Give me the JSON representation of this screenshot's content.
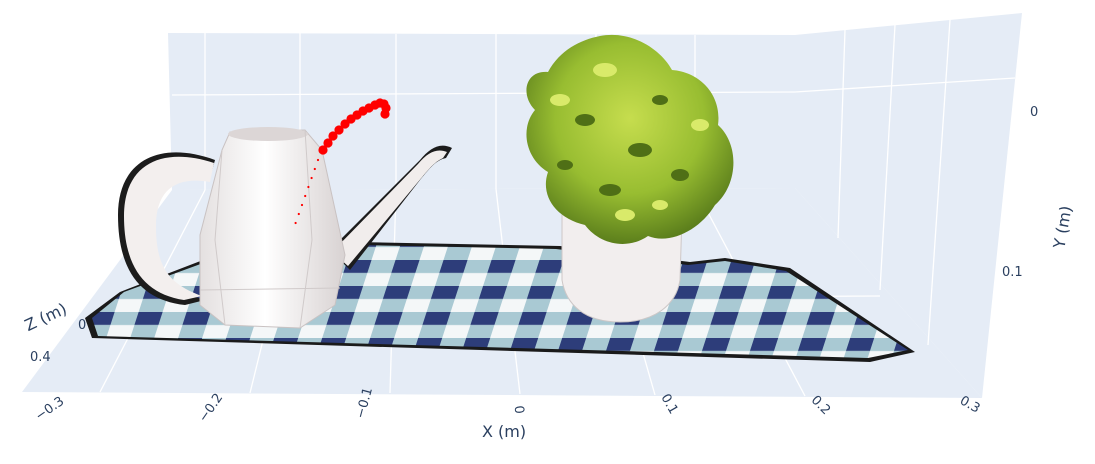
{
  "chart_data": {
    "type": "scatter3d",
    "title": "",
    "axes": {
      "x": {
        "label": "X (m)",
        "ticks": [
          "−0.3",
          "−0.2",
          "−0.1",
          "0",
          "0.1",
          "0.2",
          "0.3"
        ],
        "range": [
          -0.3,
          0.3
        ]
      },
      "y": {
        "label": "Y (m)",
        "ticks": [
          "0",
          "0.1"
        ],
        "range": [
          -0.05,
          0.17
        ]
      },
      "z": {
        "label": "Z (m)",
        "ticks": [
          "0",
          "0.4"
        ]
      }
    },
    "background_color": "#e5ecf6",
    "grid": true,
    "series": [
      {
        "kind": "point-cloud",
        "objects": [
          "watering can",
          "potted plant",
          "checkered tablecloth"
        ]
      },
      {
        "kind": "trajectory",
        "color": "#ff0000",
        "points_count": 14
      }
    ]
  }
}
